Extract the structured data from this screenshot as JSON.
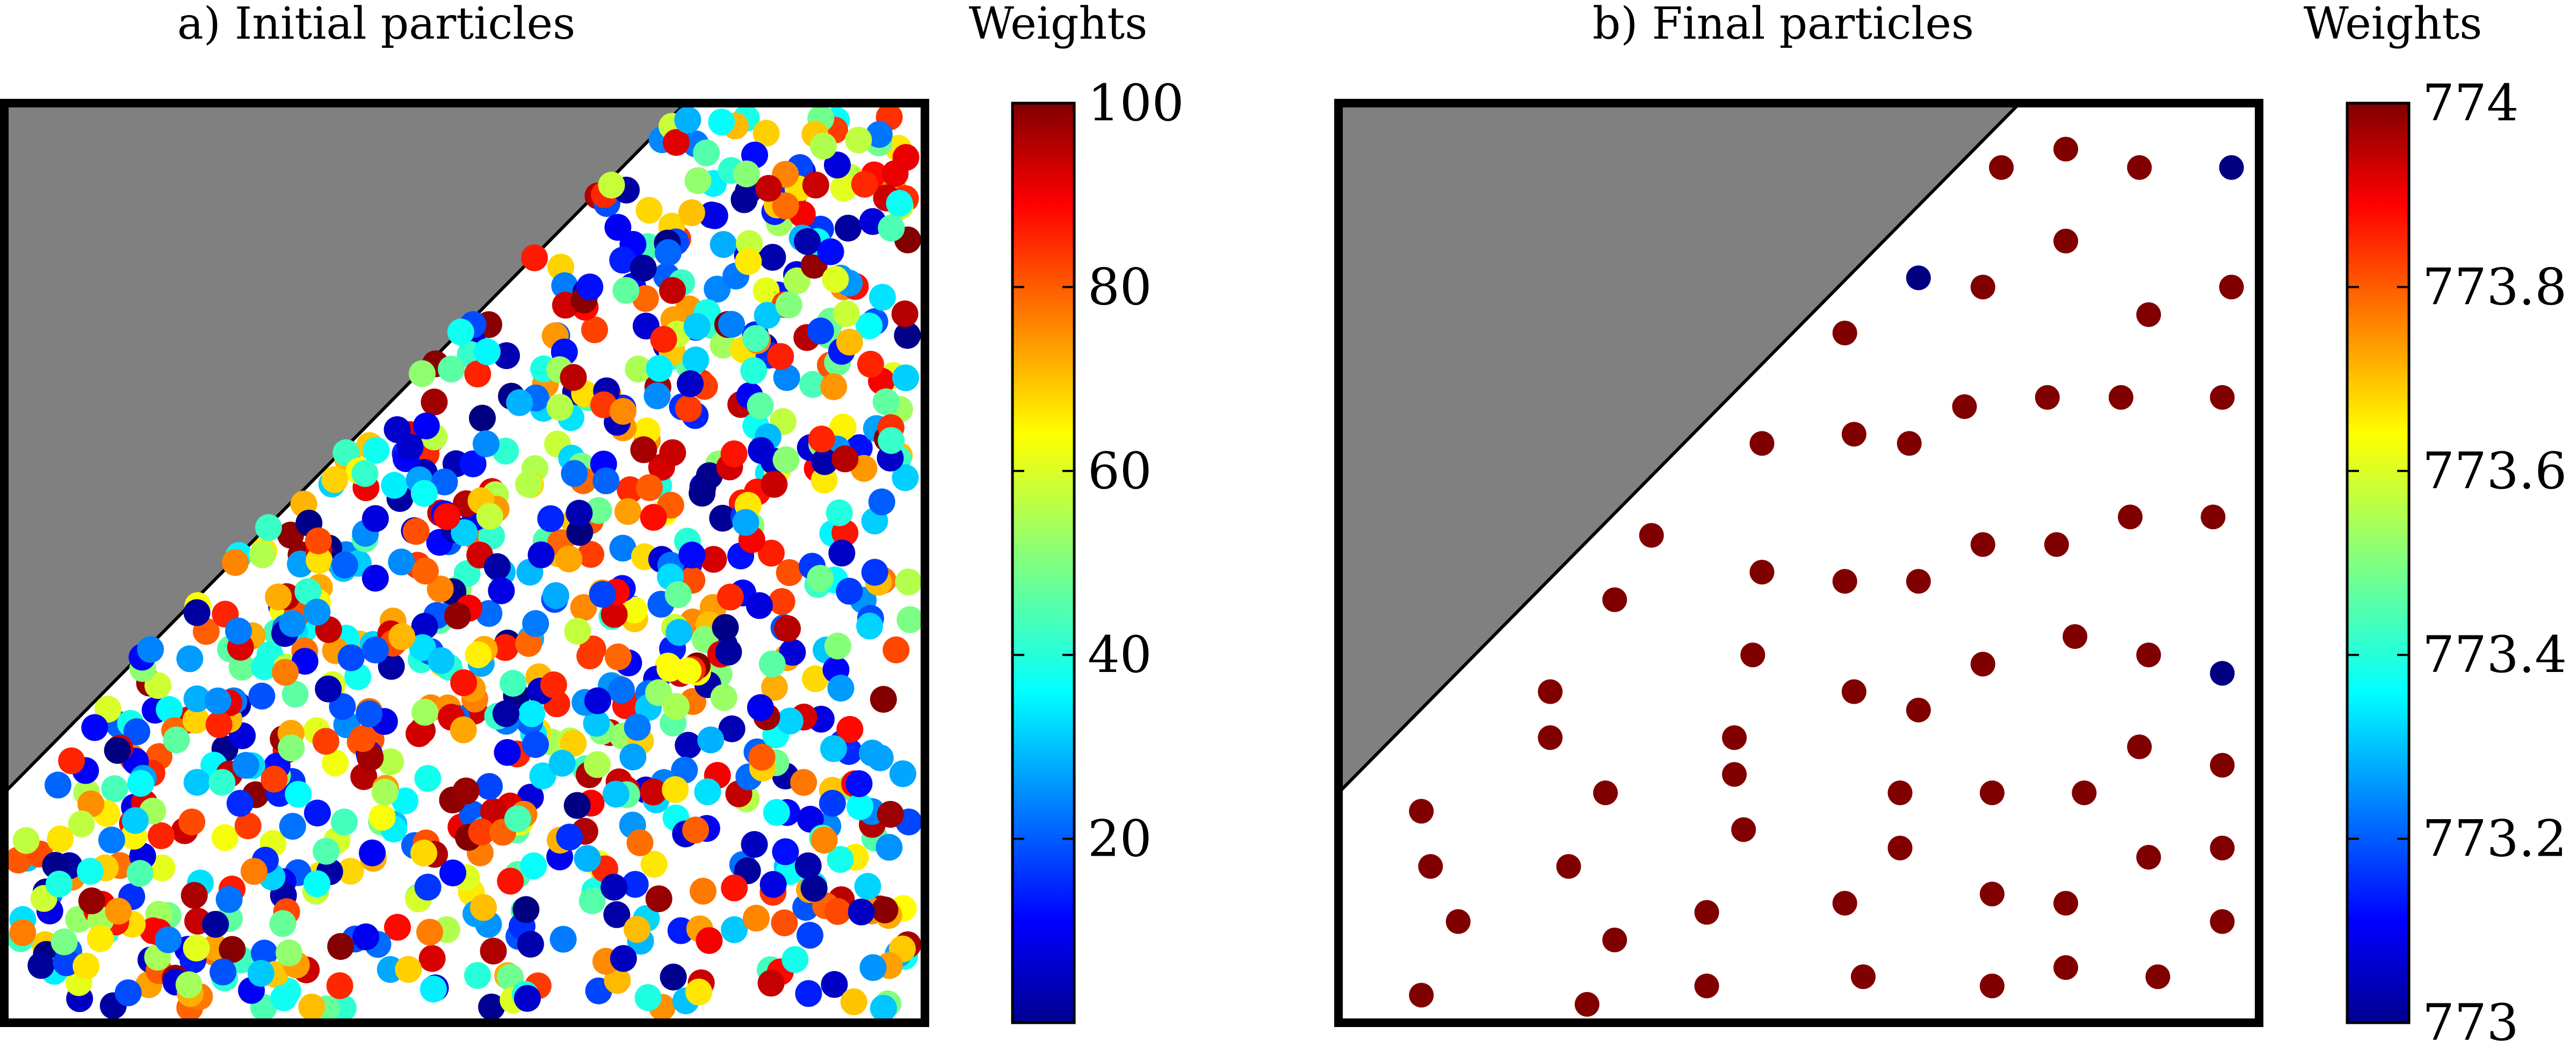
{
  "chart_data": [
    {
      "type": "scatter",
      "title": "a) Initial particles",
      "colorbar_label": "Weights",
      "colorbar_ticks": [
        "20",
        "40",
        "60",
        "80",
        "100"
      ],
      "colorbar_range": [
        0,
        100
      ],
      "colormap": "jet",
      "domain_x": [
        0,
        1
      ],
      "domain_y": [
        0,
        1
      ],
      "shaded_region": [
        [
          0,
          0.25
        ],
        [
          0,
          1
        ],
        [
          0.74,
          1
        ]
      ],
      "particle_count": 1000,
      "weight_distribution": "uniform random in [0, 100]"
    },
    {
      "type": "scatter",
      "title": "b) Final particles",
      "colorbar_label": "Weights",
      "colorbar_ticks": [
        "773",
        "773.2",
        "773.4",
        "773.6",
        "773.8",
        "774"
      ],
      "colorbar_range": [
        773,
        774
      ],
      "colormap": "jet",
      "domain_x": [
        0,
        1
      ],
      "domain_y": [
        0,
        1
      ],
      "shaded_region": [
        [
          0,
          0.25
        ],
        [
          0,
          1
        ],
        [
          0.74,
          1
        ]
      ],
      "points": [
        [
          0.72,
          0.93,
          774
        ],
        [
          0.79,
          0.95,
          774
        ],
        [
          0.87,
          0.93,
          774
        ],
        [
          0.97,
          0.93,
          773
        ],
        [
          0.63,
          0.81,
          773
        ],
        [
          0.7,
          0.8,
          774
        ],
        [
          0.79,
          0.85,
          774
        ],
        [
          0.88,
          0.77,
          774
        ],
        [
          0.97,
          0.8,
          774
        ],
        [
          0.55,
          0.75,
          774
        ],
        [
          0.68,
          0.67,
          774
        ],
        [
          0.77,
          0.68,
          774
        ],
        [
          0.85,
          0.68,
          774
        ],
        [
          0.96,
          0.68,
          774
        ],
        [
          0.46,
          0.63,
          774
        ],
        [
          0.56,
          0.64,
          774
        ],
        [
          0.62,
          0.63,
          774
        ],
        [
          0.34,
          0.53,
          774
        ],
        [
          0.46,
          0.49,
          774
        ],
        [
          0.55,
          0.48,
          774
        ],
        [
          0.63,
          0.48,
          774
        ],
        [
          0.7,
          0.52,
          774
        ],
        [
          0.78,
          0.52,
          774
        ],
        [
          0.86,
          0.55,
          774
        ],
        [
          0.95,
          0.55,
          774
        ],
        [
          0.3,
          0.46,
          774
        ],
        [
          0.45,
          0.4,
          774
        ],
        [
          0.56,
          0.36,
          774
        ],
        [
          0.63,
          0.34,
          774
        ],
        [
          0.7,
          0.39,
          774
        ],
        [
          0.8,
          0.42,
          774
        ],
        [
          0.88,
          0.4,
          774
        ],
        [
          0.96,
          0.38,
          773
        ],
        [
          0.23,
          0.36,
          774
        ],
        [
          0.23,
          0.31,
          774
        ],
        [
          0.43,
          0.31,
          774
        ],
        [
          0.43,
          0.27,
          774
        ],
        [
          0.29,
          0.25,
          774
        ],
        [
          0.61,
          0.25,
          774
        ],
        [
          0.71,
          0.25,
          774
        ],
        [
          0.81,
          0.25,
          774
        ],
        [
          0.87,
          0.3,
          774
        ],
        [
          0.96,
          0.28,
          774
        ],
        [
          0.09,
          0.23,
          774
        ],
        [
          0.1,
          0.17,
          774
        ],
        [
          0.25,
          0.17,
          774
        ],
        [
          0.44,
          0.21,
          774
        ],
        [
          0.61,
          0.19,
          774
        ],
        [
          0.88,
          0.18,
          774
        ],
        [
          0.96,
          0.19,
          774
        ],
        [
          0.13,
          0.11,
          774
        ],
        [
          0.3,
          0.09,
          774
        ],
        [
          0.4,
          0.12,
          774
        ],
        [
          0.55,
          0.13,
          774
        ],
        [
          0.71,
          0.14,
          774
        ],
        [
          0.79,
          0.13,
          774
        ],
        [
          0.96,
          0.11,
          774
        ],
        [
          0.09,
          0.03,
          774
        ],
        [
          0.27,
          0.02,
          774
        ],
        [
          0.4,
          0.04,
          774
        ],
        [
          0.57,
          0.05,
          774
        ],
        [
          0.71,
          0.04,
          774
        ],
        [
          0.79,
          0.06,
          774
        ],
        [
          0.89,
          0.05,
          774
        ]
      ]
    }
  ]
}
